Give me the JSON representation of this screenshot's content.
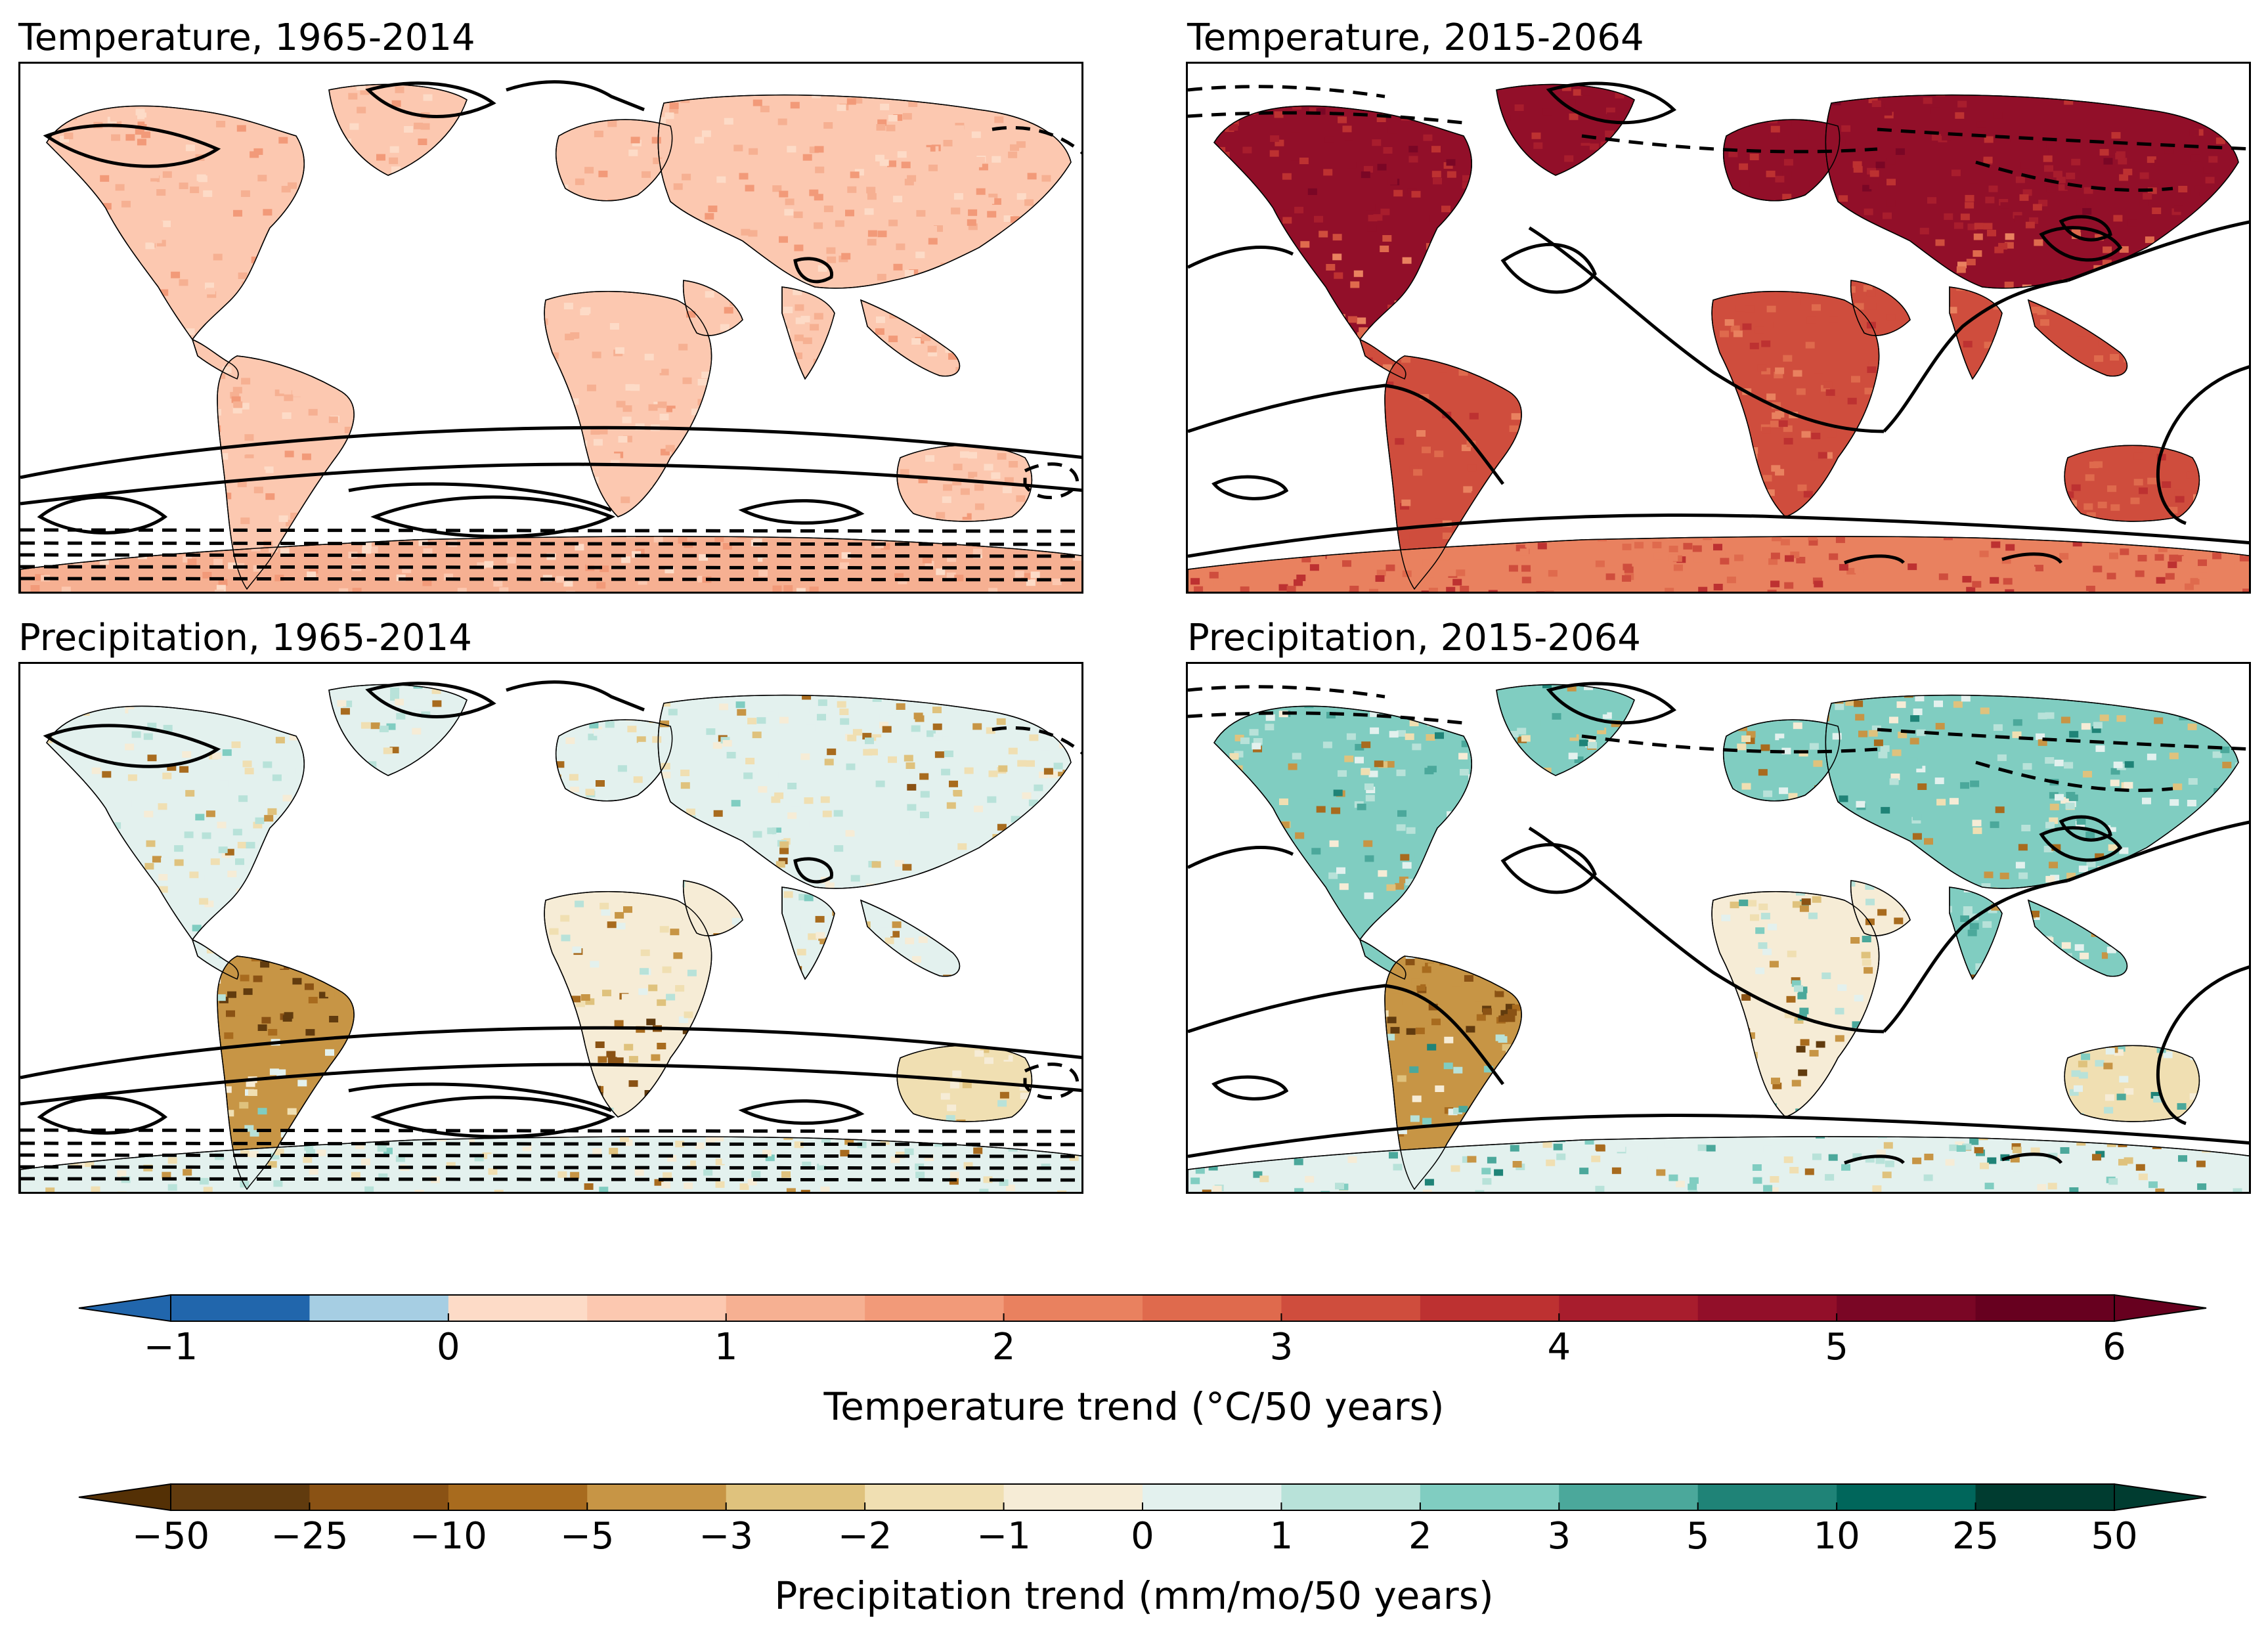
{
  "chart_data": [
    {
      "type": "heatmap",
      "title": "Temperature, 1965-2014",
      "variable": "temperature",
      "colorbar": "temperature",
      "contours": "present",
      "land_intensity": 0.3,
      "antarctica_intensity": 0.35
    },
    {
      "type": "heatmap",
      "title": "Temperature, 2015-2064",
      "variable": "temperature",
      "colorbar": "temperature",
      "contours": "future",
      "land_intensity": 0.62,
      "north_intensity": 0.9,
      "antarctica_intensity": 0.5
    },
    {
      "type": "heatmap",
      "title": "Precipitation, 1965-2014",
      "variable": "precipitation",
      "colorbar": "precipitation",
      "contours": "present",
      "land_intensity": 0.55
    },
    {
      "type": "heatmap",
      "title": "Precipitation, 2015-2064",
      "variable": "precipitation",
      "colorbar": "precipitation",
      "contours": "future",
      "land_intensity": 0.72
    }
  ],
  "colorbars": {
    "temperature": {
      "label": "Temperature trend ($^\\circ$C/50 years)",
      "label_display": "Temperature trend (°C/50 years)",
      "tick_labels": [
        "−1",
        "0",
        "1",
        "2",
        "3",
        "4",
        "5",
        "6"
      ],
      "levels": [
        -1,
        -0.5,
        0,
        0.5,
        1,
        1.5,
        2,
        2.5,
        3,
        3.5,
        4,
        4.5,
        5,
        5.5,
        6
      ],
      "colors": [
        "#2166ac",
        "#a6cee3",
        "#fddbc7",
        "#fcc8b0",
        "#f6b092",
        "#f29a79",
        "#e9815f",
        "#df6a4d",
        "#cf4d3d",
        "#bd3131",
        "#a81d2d",
        "#920f29",
        "#7a0625",
        "#67001f"
      ],
      "extend_low": "#2166ac",
      "extend_high": "#67001f"
    },
    "precipitation": {
      "label_display": "Precipitation trend (mm/mo/50 years)",
      "tick_labels": [
        "−50",
        "−25",
        "−10",
        "−5",
        "−3",
        "−2",
        "−1",
        "0",
        "1",
        "2",
        "3",
        "5",
        "10",
        "25",
        "50"
      ],
      "colors": [
        "#613b0e",
        "#8a5214",
        "#a86b1e",
        "#c79545",
        "#dfc27d",
        "#f0dfb2",
        "#f6ecd6",
        "#e3f1ee",
        "#b8e2d9",
        "#80cdc1",
        "#4ba89b",
        "#1f8377",
        "#00665b",
        "#003c30"
      ],
      "extend_low": "#543005",
      "extend_high": "#003c30"
    }
  }
}
